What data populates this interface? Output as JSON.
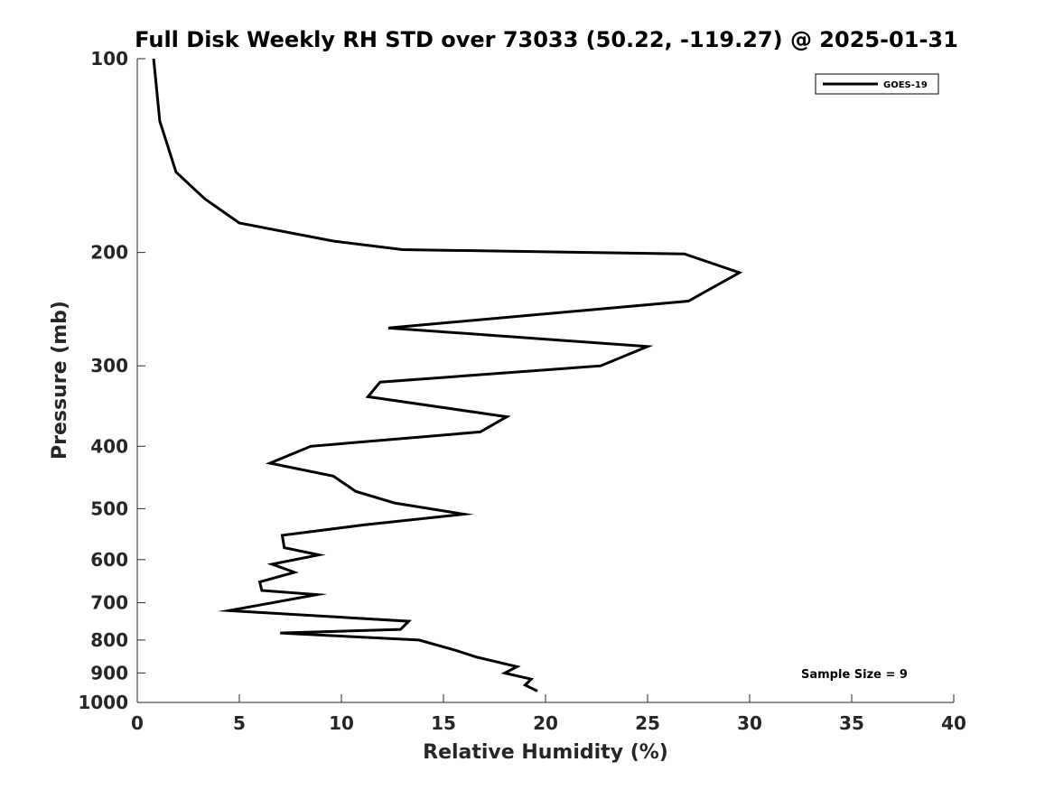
{
  "chart_data": {
    "type": "line",
    "title": "Full Disk Weekly RH STD over 73033 (50.22, -119.27) @ 2025-01-31",
    "xlabel": "Relative Humidity (%)",
    "ylabel": "Pressure (mb)",
    "xlim": [
      0,
      40
    ],
    "ylim": [
      100,
      1000
    ],
    "y_scale": "log",
    "y_reversed": true,
    "x_ticks": [
      "0",
      "5",
      "10",
      "15",
      "20",
      "25",
      "30",
      "35",
      "40"
    ],
    "y_ticks": [
      "100",
      "200",
      "300",
      "400",
      "500",
      "600",
      "700",
      "800",
      "900",
      "1000"
    ],
    "legend_position": "top-right",
    "annotation": "Sample Size = 9",
    "series": [
      {
        "name": "GOES-19",
        "color": "#000000",
        "x": [
          0.8,
          1.1,
          1.9,
          3.3,
          5.0,
          9.6,
          13.0,
          26.8,
          29.5,
          27.0,
          12.3,
          25.0,
          22.7,
          11.9,
          11.3,
          18.1,
          16.8,
          8.5,
          6.5,
          9.6,
          10.7,
          12.6,
          16.0,
          11.1,
          7.1,
          7.2,
          8.9,
          6.6,
          7.7,
          6.0,
          6.1,
          8.8,
          4.5,
          13.3,
          12.9,
          7.0,
          13.8,
          15.6,
          16.6,
          18.6,
          18.0,
          19.3,
          19.0,
          19.6
        ],
        "y": [
          100,
          125,
          150,
          165,
          180,
          192,
          198,
          201,
          215,
          238,
          262,
          280,
          300,
          318,
          335,
          360,
          380,
          400,
          425,
          445,
          470,
          490,
          510,
          530,
          550,
          575,
          590,
          610,
          628,
          650,
          670,
          680,
          720,
          748,
          770,
          780,
          800,
          830,
          850,
          880,
          900,
          920,
          940,
          960
        ]
      }
    ]
  }
}
